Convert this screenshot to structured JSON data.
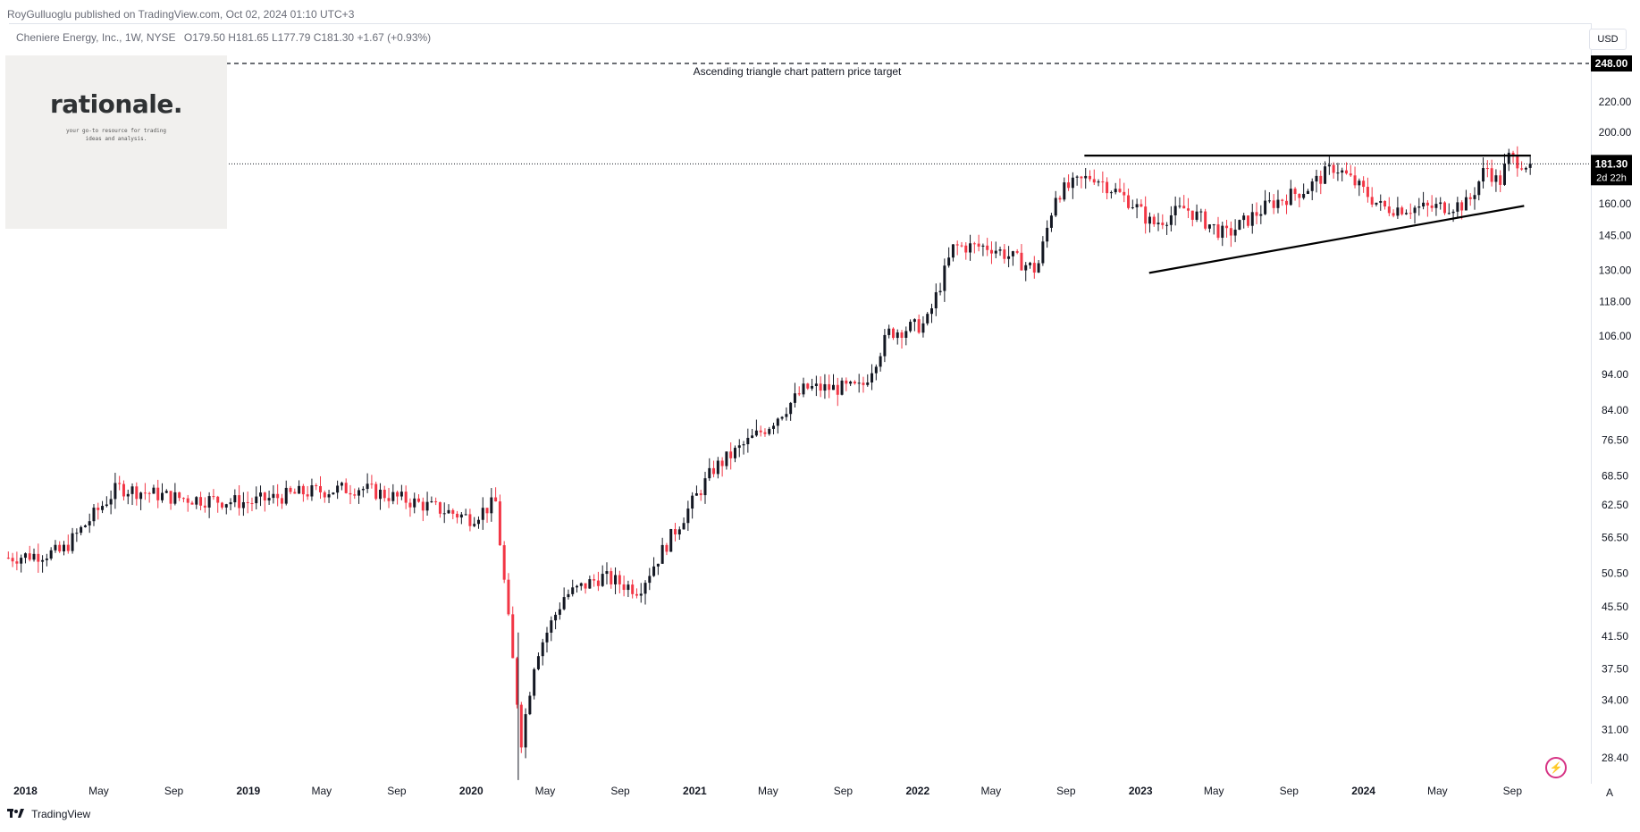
{
  "header": {
    "publisher": "RoyGulluoglu published on TradingView.com,",
    "date": "Oct 02, 2024 01:10 UTC+3"
  },
  "legend": {
    "symbol": "Cheniere Energy, Inc., 1W, NYSE",
    "open": "O179.50",
    "high": "H181.65",
    "low": "L177.79",
    "close": "C181.30",
    "change": "+1.67 (+0.93%)"
  },
  "watermark": {
    "logo": "rationale.",
    "tagline_1": "your go-to resource for trading",
    "tagline_2": "ideas and analysis."
  },
  "currency": "USD",
  "footer": {
    "brand": "TradingView",
    "scale_button": "A"
  },
  "colors": {
    "up": "#131722",
    "down": "#f23645",
    "grid": "#e0e3eb",
    "label_bg": "#000000"
  },
  "chart_data": {
    "type": "candlestick",
    "y_scale": "log",
    "ylim": [
      26,
      260
    ],
    "y_ticks": [
      "28.40",
      "31.00",
      "34.00",
      "37.50",
      "41.50",
      "45.50",
      "50.50",
      "56.50",
      "62.50",
      "68.50",
      "76.50",
      "84.00",
      "94.00",
      "106.00",
      "118.00",
      "130.00",
      "145.00",
      "160.00",
      "181.30",
      "200.00",
      "220.00",
      "248.00"
    ],
    "x_labels": [
      "2018",
      "May",
      "Sep",
      "2019",
      "May",
      "Sep",
      "2020",
      "May",
      "Sep",
      "2021",
      "May",
      "Sep",
      "2022",
      "May",
      "Sep",
      "2023",
      "May",
      "Sep",
      "2024",
      "May",
      "Sep"
    ],
    "current_price": "181.30",
    "countdown": "2d 22h",
    "target_price": "248.00",
    "target_label": "Ascending triangle chart pattern price target",
    "anchors": [
      [
        "2017-12-01",
        53
      ],
      [
        "2018-03-01",
        54
      ],
      [
        "2018-06-01",
        66
      ],
      [
        "2018-09-01",
        64
      ],
      [
        "2019-01-01",
        63
      ],
      [
        "2019-04-01",
        65
      ],
      [
        "2019-07-01",
        66
      ],
      [
        "2019-10-01",
        63
      ],
      [
        "2019-12-31",
        60
      ],
      [
        "2020-02-10",
        63
      ],
      [
        "2020-03-23",
        30
      ],
      [
        "2020-04-15",
        39
      ],
      [
        "2020-06-01",
        47
      ],
      [
        "2020-08-01",
        50
      ],
      [
        "2020-10-01",
        48
      ],
      [
        "2020-12-01",
        58
      ],
      [
        "2021-02-01",
        70
      ],
      [
        "2021-05-01",
        80
      ],
      [
        "2021-07-01",
        90
      ],
      [
        "2021-10-01",
        90
      ],
      [
        "2021-11-15",
        107
      ],
      [
        "2022-01-15",
        110
      ],
      [
        "2022-03-01",
        140
      ],
      [
        "2022-05-01",
        140
      ],
      [
        "2022-07-15",
        130
      ],
      [
        "2022-08-15",
        165
      ],
      [
        "2022-10-15",
        175
      ],
      [
        "2022-12-20",
        160
      ],
      [
        "2023-01-20",
        150
      ],
      [
        "2023-03-15",
        158
      ],
      [
        "2023-05-20",
        145
      ],
      [
        "2023-08-01",
        160
      ],
      [
        "2023-10-01",
        168
      ],
      [
        "2023-11-15",
        180
      ],
      [
        "2023-12-20",
        170
      ],
      [
        "2024-02-01",
        158
      ],
      [
        "2024-04-15",
        158
      ],
      [
        "2024-06-20",
        160
      ],
      [
        "2024-07-20",
        180
      ],
      [
        "2024-08-10",
        170
      ],
      [
        "2024-08-25",
        185
      ],
      [
        "2024-09-25",
        181.3
      ]
    ],
    "resistance_line": {
      "start": [
        "2022-10-01",
        186
      ],
      "end": [
        "2024-10-01",
        186
      ]
    },
    "support_line": {
      "start": [
        "2023-01-15",
        129
      ],
      "end": [
        "2024-09-20",
        159
      ]
    }
  }
}
